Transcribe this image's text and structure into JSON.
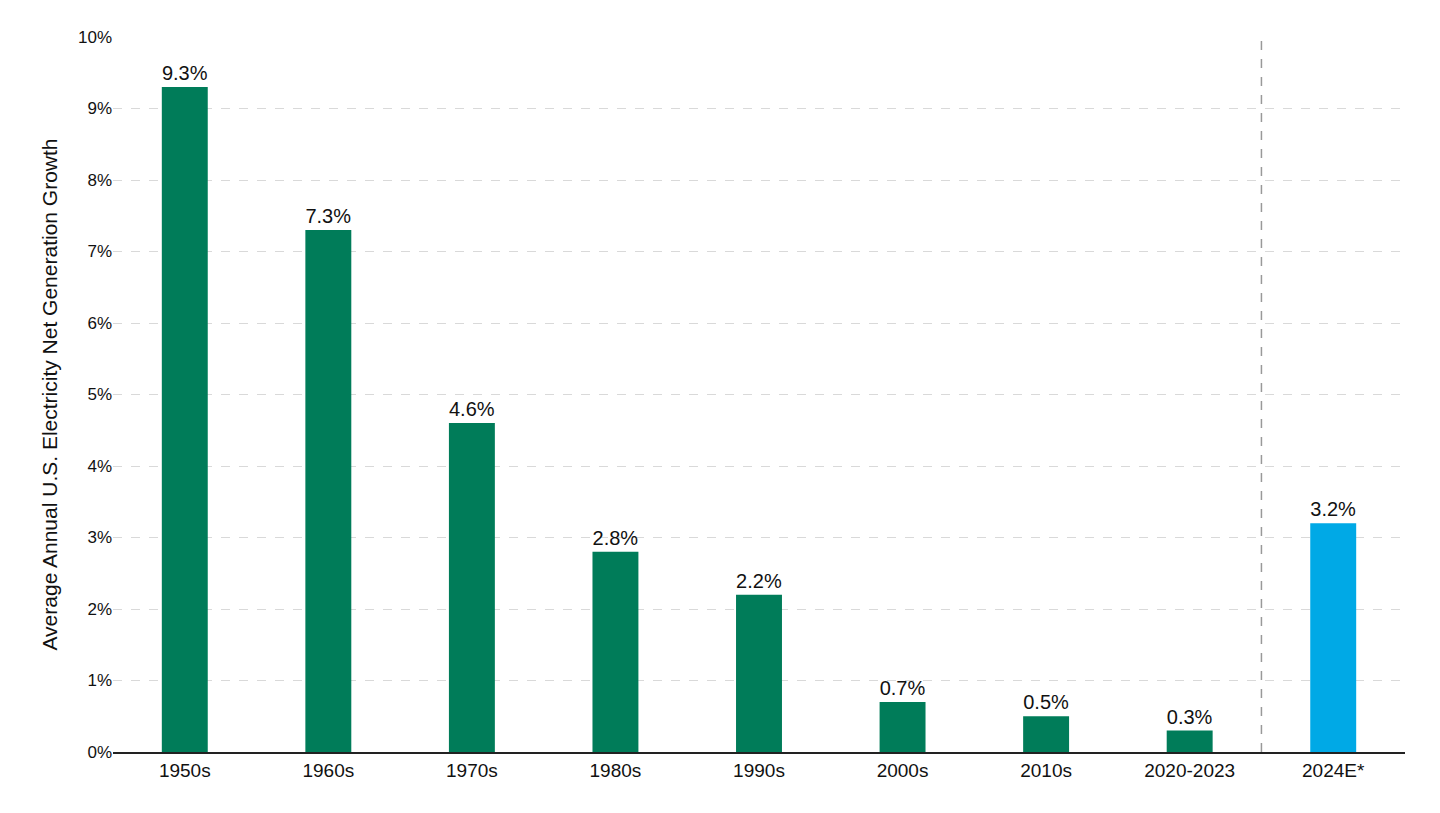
{
  "chart_data": {
    "type": "bar",
    "y_label": "Average Annual U.S. Electricity Net Generation Growth",
    "categories": [
      "1950s",
      "1960s",
      "1970s",
      "1980s",
      "1990s",
      "2000s",
      "2010s",
      "2020-2023",
      "2024E*"
    ],
    "values": [
      9.3,
      7.3,
      4.6,
      2.8,
      2.2,
      0.7,
      0.5,
      0.3,
      3.2
    ],
    "value_labels": [
      "9.3%",
      "7.3%",
      "4.6%",
      "2.8%",
      "2.2%",
      "0.7%",
      "0.5%",
      "0.3%",
      "3.2%"
    ],
    "colors": [
      "#007c59",
      "#007c59",
      "#007c59",
      "#007c59",
      "#007c59",
      "#007c59",
      "#007c59",
      "#007c59",
      "#00a9e6"
    ],
    "ylim": [
      0,
      10
    ],
    "yticks": [
      {
        "value": 0,
        "label": "0%"
      },
      {
        "value": 1,
        "label": "1%"
      },
      {
        "value": 2,
        "label": "2%"
      },
      {
        "value": 3,
        "label": "3%"
      },
      {
        "value": 4,
        "label": "4%"
      },
      {
        "value": 5,
        "label": "5%"
      },
      {
        "value": 6,
        "label": "6%"
      },
      {
        "value": 7,
        "label": "7%"
      },
      {
        "value": 8,
        "label": "8%"
      },
      {
        "value": 9,
        "label": "9%"
      },
      {
        "value": 10,
        "label": "10%"
      }
    ],
    "grid": true,
    "data_labels": true
  }
}
